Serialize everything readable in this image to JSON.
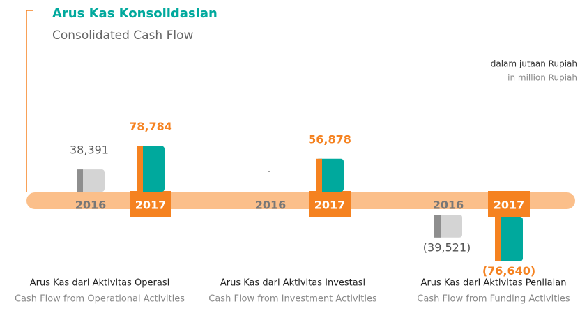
{
  "chart_data": {
    "type": "bar",
    "title": "Arus Kas Konsolidasian",
    "subtitle": "Consolidated Cash Flow",
    "unit": "dalam jutaan Rupiah",
    "unit_en": "in million Rupiah",
    "categories": [
      "Arus Kas dari Aktivitas Operasi",
      "Arus Kas dari Aktivitas Investasi",
      "Arus Kas dari Aktivitas Penilaian"
    ],
    "categories_en": [
      "Cash Flow from Operational Activities",
      "Cash Flow from Investment Activities",
      "Cash Flow from Funding Activities"
    ],
    "series": [
      {
        "name": "2016",
        "color": "#d4d4d4",
        "accent": "#8e8e8e",
        "values": [
          38391,
          null,
          -39521
        ],
        "value_labels": [
          "38,391",
          "-",
          "(39,521)"
        ]
      },
      {
        "name": "2017",
        "color": "#00a99d",
        "accent": "#f58220",
        "values": [
          78784,
          56878,
          -76640
        ],
        "value_labels": [
          "78,784",
          "56,878",
          "(76,640)"
        ]
      }
    ]
  }
}
